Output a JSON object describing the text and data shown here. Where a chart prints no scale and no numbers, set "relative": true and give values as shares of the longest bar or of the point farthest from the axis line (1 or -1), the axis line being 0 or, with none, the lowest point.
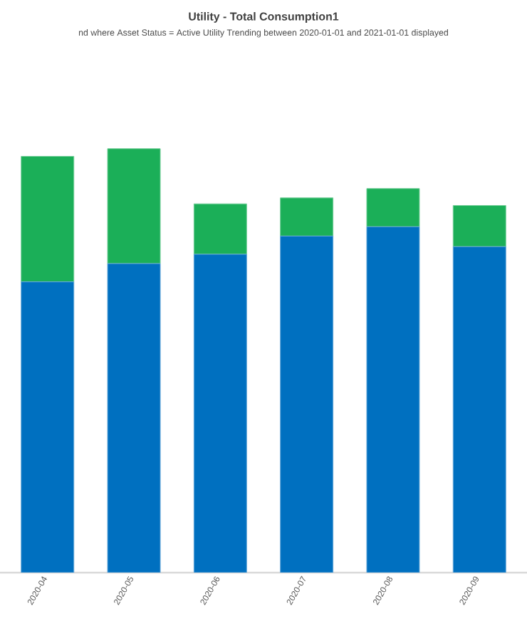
{
  "chart_data": {
    "type": "bar",
    "title": "Utility - Total Consumption1",
    "subtitle": "nd where Asset Status =  Active Utility Trending between 2020-01-01 and 2021-01-01 displayed",
    "categories": [
      "2020-04",
      "2020-05",
      "2020-06",
      "2020-07",
      "2020-08",
      "2020-09"
    ],
    "stacked": true,
    "relative": true,
    "series": [
      {
        "color": "#0070c0",
        "values": [
          0.686,
          0.729,
          0.751,
          0.794,
          0.816,
          0.769
        ]
      },
      {
        "color": "#1baf58",
        "values": [
          0.296,
          0.271,
          0.119,
          0.09,
          0.09,
          0.097
        ]
      }
    ]
  }
}
